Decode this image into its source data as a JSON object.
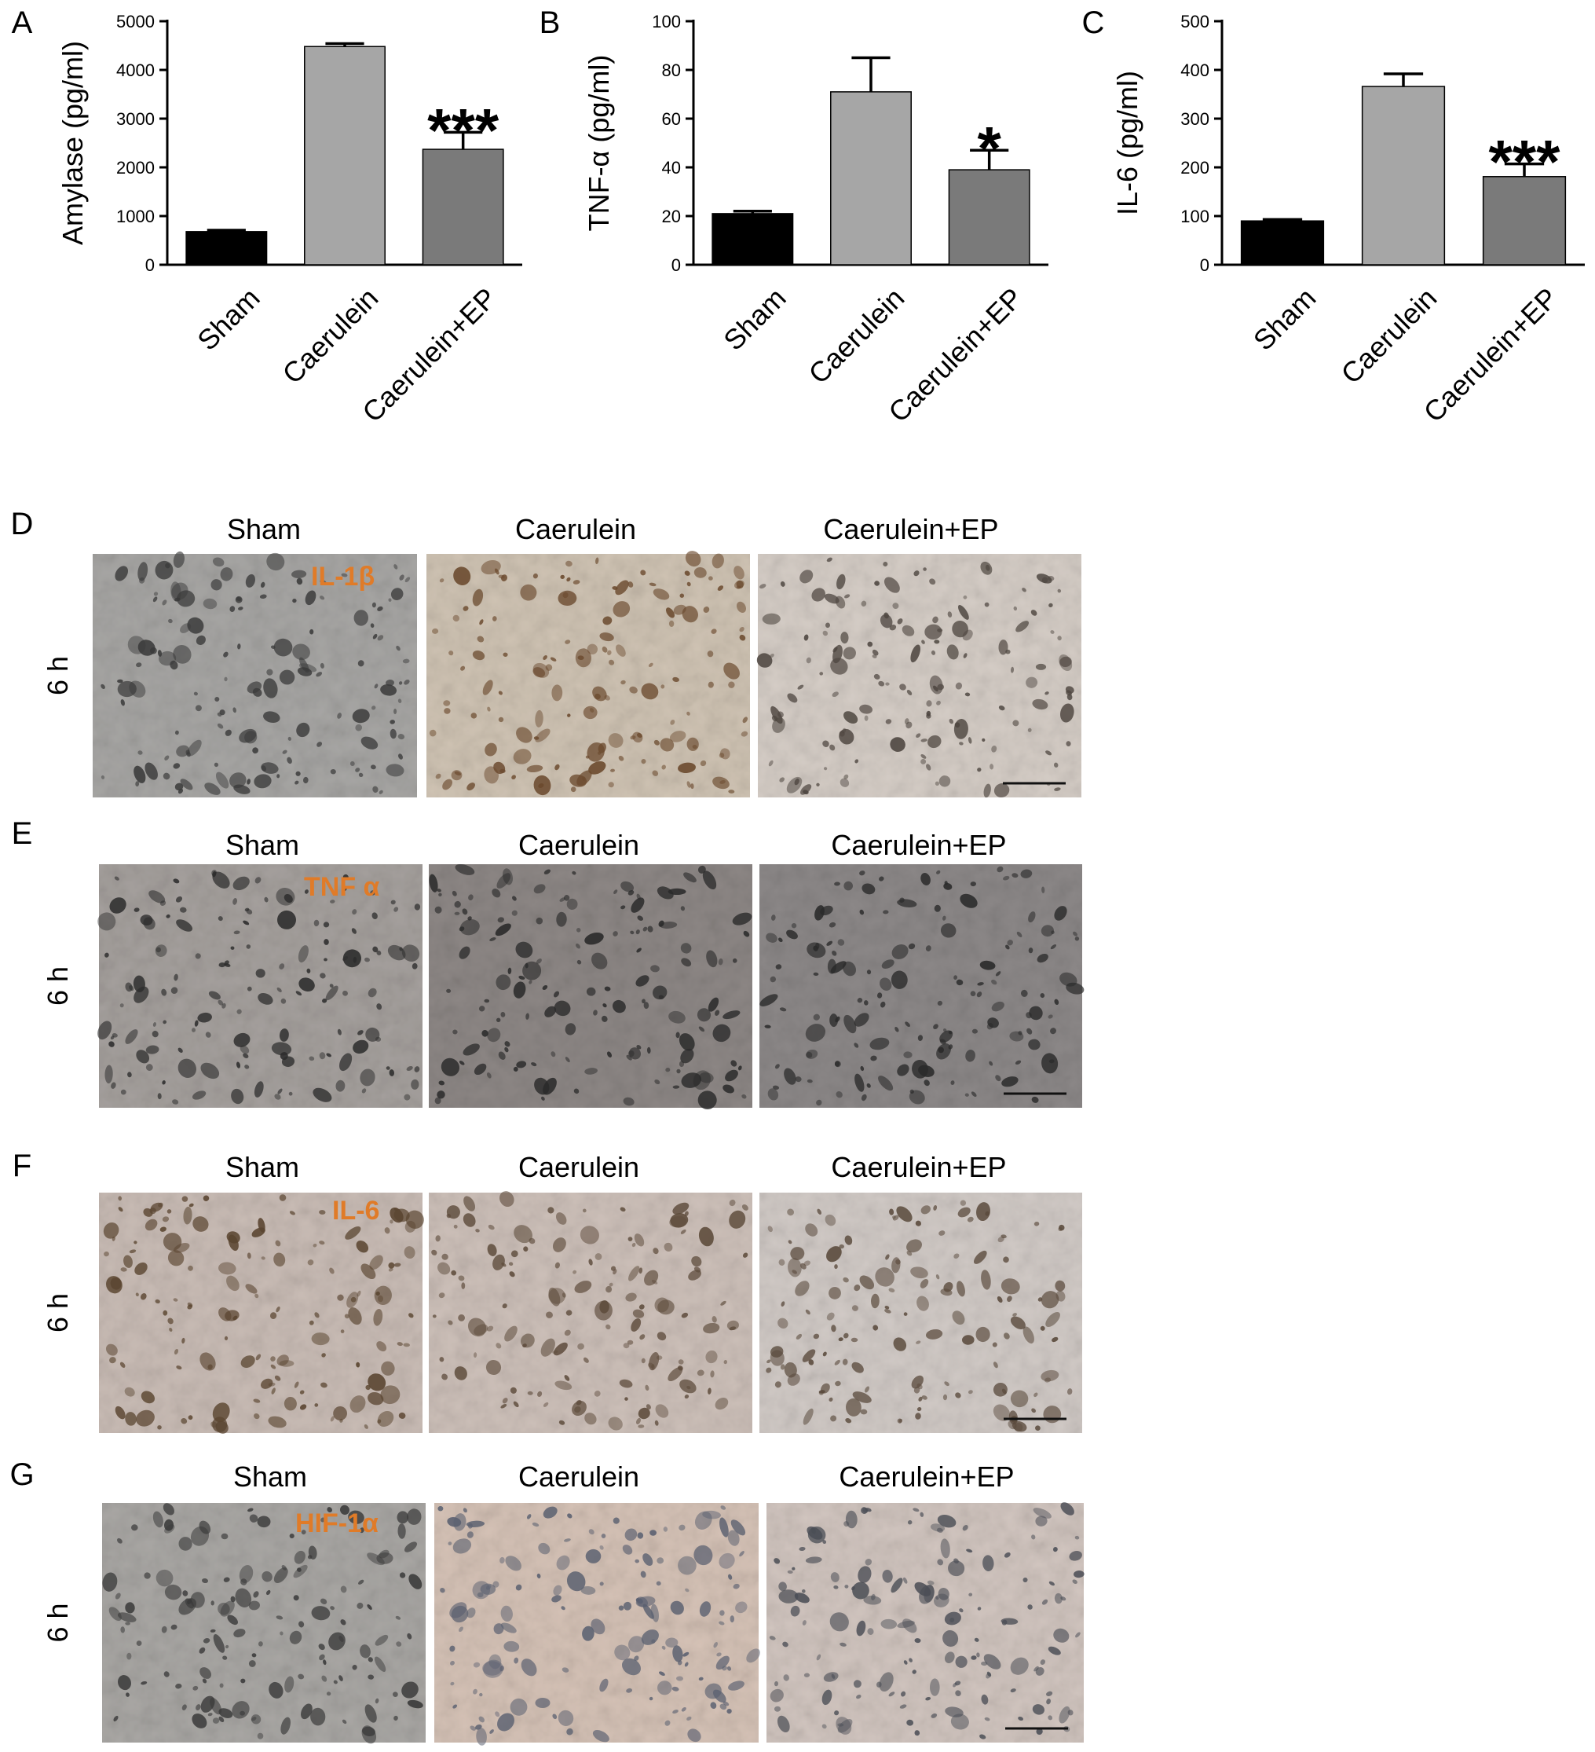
{
  "colors": {
    "sham": "#000000",
    "caerulein": "#a6a6a6",
    "caerulein_ep": "#7a7a7a",
    "stain_label": "#e07b28"
  },
  "chart_data": [
    {
      "type": "bar",
      "panel_letter": "A",
      "categories": [
        "Sham",
        "Caerulein",
        "Caerulein+EP"
      ],
      "values": [
        680,
        4480,
        2370
      ],
      "errors": [
        30,
        60,
        350
      ],
      "ylabel": "Amylase (pg/ml)",
      "ylim": [
        0,
        5000
      ],
      "yticks": [
        "0",
        "1000",
        "2000",
        "3000",
        "4000",
        "5000"
      ],
      "significance": [
        "",
        "",
        "***"
      ]
    },
    {
      "type": "bar",
      "panel_letter": "B",
      "categories": [
        "Sham",
        "Caerulein",
        "Caerulein+EP"
      ],
      "values": [
        21,
        71,
        39
      ],
      "errors": [
        1,
        14,
        8
      ],
      "ylabel": "TNF-α (pg/ml)",
      "ylim": [
        0,
        100
      ],
      "yticks": [
        "0",
        "20",
        "40",
        "60",
        "80",
        "100"
      ],
      "significance": [
        "",
        "",
        "*"
      ]
    },
    {
      "type": "bar",
      "panel_letter": "C",
      "categories": [
        "Sham",
        "Caerulein",
        "Caerulein+EP"
      ],
      "values": [
        90,
        366,
        181
      ],
      "errors": [
        3,
        26,
        26
      ],
      "ylabel": "IL-6 (pg/ml)",
      "ylim": [
        0,
        500
      ],
      "yticks": [
        "0",
        "100",
        "200",
        "300",
        "400",
        "500"
      ],
      "significance": [
        "",
        "",
        "***"
      ]
    }
  ],
  "micrographs": [
    {
      "panel_letter": "D",
      "row_label": "6 h",
      "stain": "IL-1β",
      "captions": [
        "Sham",
        "Caerulein",
        "Caerulein+EP"
      ]
    },
    {
      "panel_letter": "E",
      "row_label": "6 h",
      "stain": "TNF α",
      "captions": [
        "Sham",
        "Caerulein",
        "Caerulein+EP"
      ]
    },
    {
      "panel_letter": "F",
      "row_label": "6 h",
      "stain": "IL-6",
      "captions": [
        "Sham",
        "Caerulein",
        "Caerulein+EP"
      ]
    },
    {
      "panel_letter": "G",
      "row_label": "6 h",
      "stain": "HIF-1α",
      "captions": [
        "Sham",
        "Caerulein",
        "Caerulein+EP"
      ]
    }
  ]
}
